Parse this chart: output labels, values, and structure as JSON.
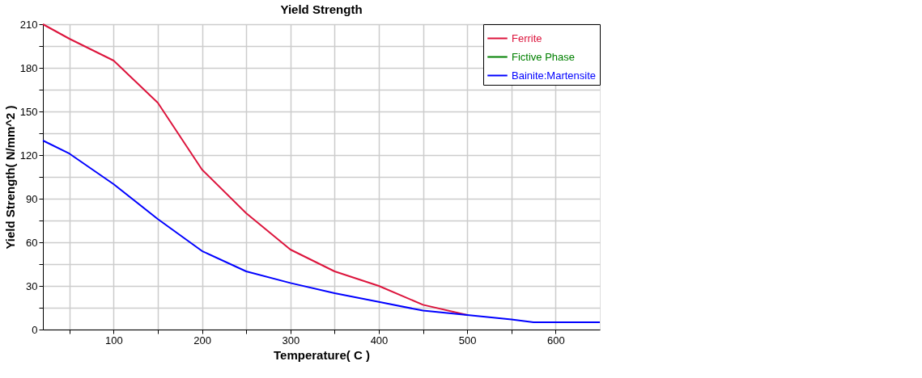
{
  "chart_data": {
    "type": "line",
    "title": "Yield Strength",
    "xlabel": "Temperature( C )",
    "ylabel": "Yield Strength( N/mm^2 )",
    "xlim": [
      20,
      650
    ],
    "xticks": [
      {
        "value": 50,
        "label": null
      },
      100,
      {
        "value": 150,
        "label": null
      },
      200,
      {
        "value": 250,
        "label": null
      },
      300,
      {
        "value": 350,
        "label": null
      },
      400,
      {
        "value": 450,
        "label": null
      },
      500,
      {
        "value": 550,
        "label": null
      },
      600
    ],
    "ylim": [
      0,
      210
    ],
    "yticks": [
      0,
      {
        "value": 15,
        "label": null
      },
      30,
      {
        "value": 45,
        "label": null
      },
      60,
      {
        "value": 75,
        "label": null
      },
      90,
      {
        "value": 105,
        "label": null
      },
      120,
      {
        "value": 135,
        "label": null
      },
      150,
      {
        "value": 165,
        "label": null
      },
      180,
      {
        "value": 195,
        "label": null
      },
      210
    ],
    "grid": true,
    "legend": "top right",
    "line_style": "solid",
    "marker": "none",
    "series": [
      {
        "name": "Ferrite",
        "color": "#dc143c",
        "x": [
          20,
          50,
          100,
          150,
          200,
          250,
          300,
          350,
          400,
          450,
          500
        ],
        "values": [
          210,
          200,
          185,
          156,
          110,
          80,
          55,
          40,
          30,
          17,
          10
        ]
      },
      {
        "name": "Fictive Phase",
        "color": "#008000"
      },
      {
        "name": "Bainite:Martensite",
        "color": "#0000ff",
        "x": [
          20,
          50,
          100,
          150,
          200,
          250,
          300,
          350,
          400,
          450,
          500,
          550,
          575,
          650
        ],
        "values": [
          130,
          121,
          100,
          76,
          54,
          40,
          32,
          25,
          19,
          13,
          10,
          7,
          5,
          5
        ]
      }
    ]
  }
}
